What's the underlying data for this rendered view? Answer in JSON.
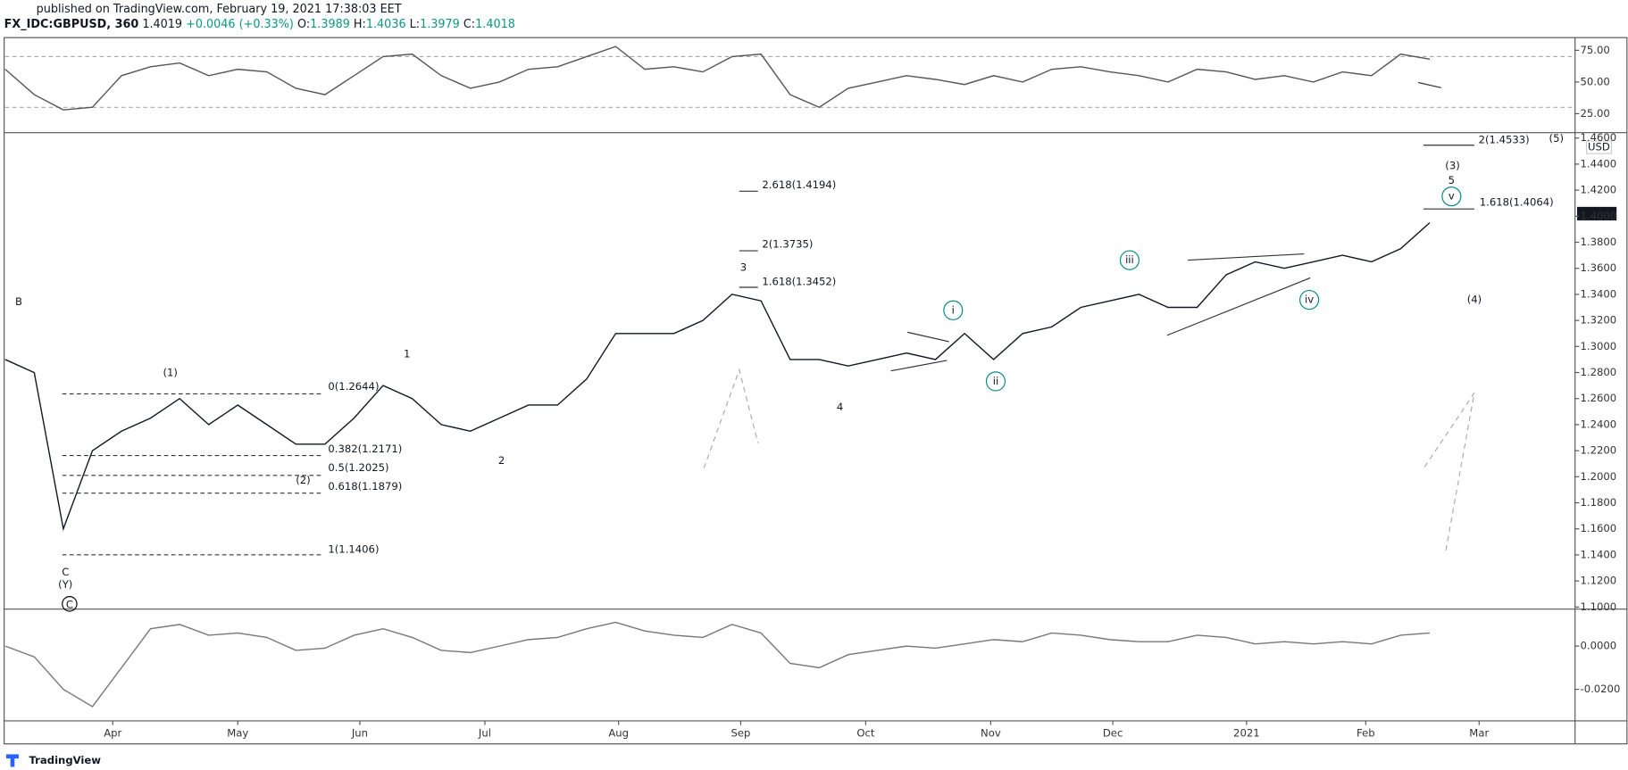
{
  "header": {
    "published": "published on TradingView.com, February 19, 2021 17:38:03 EET",
    "symbol": "FX_IDC:GBPUSD, 360",
    "last": "1.4019",
    "change": "+0.0046 (+0.33%)",
    "o_label": "O:",
    "o": "1.3989",
    "h_label": "H:",
    "h": "1.4036",
    "l_label": "L:",
    "l": "1.3979",
    "c_label": "C:",
    "c": "1.4018"
  },
  "price_tag": "1.4018",
  "currency": "USD",
  "annotations": [
    "B",
    "C",
    "(Y)",
    "C",
    "(1)",
    "(2)",
    "1",
    "2",
    "3",
    "4",
    "5",
    "(3)",
    "(4)",
    "(5)",
    "i",
    "ii",
    "iii",
    "iv",
    "v"
  ],
  "fib_labels": [
    "0(1.2644)",
    "0.382(1.2171)",
    "0.5(1.2025)",
    "0.618(1.1879)",
    "1(1.1406)",
    "1.618(1.3452)",
    "2(1.3735)",
    "2.618(1.4194)",
    "1.618(1.4064)",
    "2(1.4533)"
  ],
  "footer": {
    "brand": "TradingView"
  },
  "chart_data": [
    {
      "type": "line",
      "color": "#131722",
      "values": [
        1.29,
        1.28,
        1.16,
        1.22,
        1.235,
        1.245,
        1.26,
        1.24,
        1.255,
        1.24,
        1.225,
        1.225,
        1.245,
        1.27,
        1.26,
        1.24,
        1.235,
        1.245,
        1.255,
        1.255,
        1.275,
        1.31,
        1.31,
        1.31,
        1.32,
        1.34,
        1.335,
        1.29,
        1.29,
        1.285,
        1.29,
        1.295,
        1.29,
        1.31,
        1.29,
        1.31,
        1.315,
        1.33,
        1.335,
        1.34,
        1.33,
        1.33,
        1.355,
        1.365,
        1.36,
        1.365,
        1.37,
        1.365,
        1.375,
        1.395
      ],
      "xlim": [
        0,
        54
      ],
      "xticks": [
        {
          "value": 3.7,
          "label": "Apr"
        },
        {
          "value": 8.0,
          "label": "May"
        },
        {
          "value": 12.2,
          "label": "Jun"
        },
        {
          "value": 16.5,
          "label": "Jul"
        },
        {
          "value": 21.1,
          "label": "Aug"
        },
        {
          "value": 25.3,
          "label": "Sep"
        },
        {
          "value": 29.6,
          "label": "Oct"
        },
        {
          "value": 33.9,
          "label": "Nov"
        },
        {
          "value": 38.1,
          "label": "Dec"
        },
        {
          "value": 42.7,
          "label": "2021"
        },
        {
          "value": 46.8,
          "label": "Feb"
        },
        {
          "value": 50.7,
          "label": "Mar"
        }
      ],
      "ylim": [
        1.0984,
        1.4633
      ],
      "yticks": [
        {
          "value": 1.1,
          "label": "1.1000"
        },
        {
          "value": 1.12,
          "label": "1.1200"
        },
        {
          "value": 1.14,
          "label": "1.1400"
        },
        {
          "value": 1.16,
          "label": "1.1600"
        },
        {
          "value": 1.18,
          "label": "1.1800"
        },
        {
          "value": 1.2,
          "label": "1.2000"
        },
        {
          "value": 1.22,
          "label": "1.2200"
        },
        {
          "value": 1.24,
          "label": "1.2400"
        },
        {
          "value": 1.26,
          "label": "1.2600"
        },
        {
          "value": 1.28,
          "label": "1.2800"
        },
        {
          "value": 1.3,
          "label": "1.3000"
        },
        {
          "value": 1.32,
          "label": "1.3200"
        },
        {
          "value": 1.34,
          "label": "1.3400"
        },
        {
          "value": 1.36,
          "label": "1.3600"
        },
        {
          "value": 1.38,
          "label": "1.3800"
        },
        {
          "value": 1.4,
          "label": "1.4000"
        },
        {
          "value": 1.42,
          "label": "1.4200"
        },
        {
          "value": 1.44,
          "label": "1.4400"
        },
        {
          "value": 1.46,
          "label": "1.4600"
        }
      ]
    },
    {
      "type": "line",
      "color": "#555555",
      "values": [
        60,
        40,
        28,
        30,
        55,
        62,
        65,
        55,
        60,
        58,
        45,
        40,
        55,
        70,
        72,
        55,
        45,
        50,
        60,
        62,
        70,
        78,
        60,
        62,
        58,
        70,
        72,
        40,
        30,
        45,
        50,
        55,
        52,
        48,
        55,
        50,
        60,
        62,
        58,
        55,
        50,
        60,
        58,
        52,
        55,
        50,
        58,
        55,
        72,
        68
      ],
      "xlim": [
        0,
        54
      ],
      "ylim": [
        10,
        85
      ],
      "yticks": [
        {
          "value": 75,
          "label": "75.00"
        },
        {
          "value": 50,
          "label": "50.00"
        },
        {
          "value": 25,
          "label": "25.00"
        }
      ],
      "bands": [
        30,
        70
      ]
    },
    {
      "type": "line",
      "color": "#777777",
      "values": [
        0,
        -0.005,
        -0.02,
        -0.028,
        -0.01,
        0.008,
        0.01,
        0.005,
        0.006,
        0.004,
        -0.002,
        -0.001,
        0.005,
        0.008,
        0.004,
        -0.002,
        -0.003,
        0,
        0.003,
        0.004,
        0.008,
        0.011,
        0.007,
        0.005,
        0.004,
        0.01,
        0.006,
        -0.008,
        -0.01,
        -0.004,
        -0.002,
        0,
        -0.001,
        0.001,
        0.003,
        0.002,
        0.006,
        0.005,
        0.003,
        0.002,
        0.002,
        0.005,
        0.004,
        0.001,
        0.002,
        0.001,
        0.002,
        0.001,
        0.005,
        0.006
      ],
      "xlim": [
        0,
        54
      ],
      "ylim": [
        -0.0346,
        0.0166
      ],
      "yticks": [
        {
          "value": 0,
          "label": "0.0000"
        },
        {
          "value": -0.02,
          "label": "-0.0200"
        }
      ]
    }
  ]
}
